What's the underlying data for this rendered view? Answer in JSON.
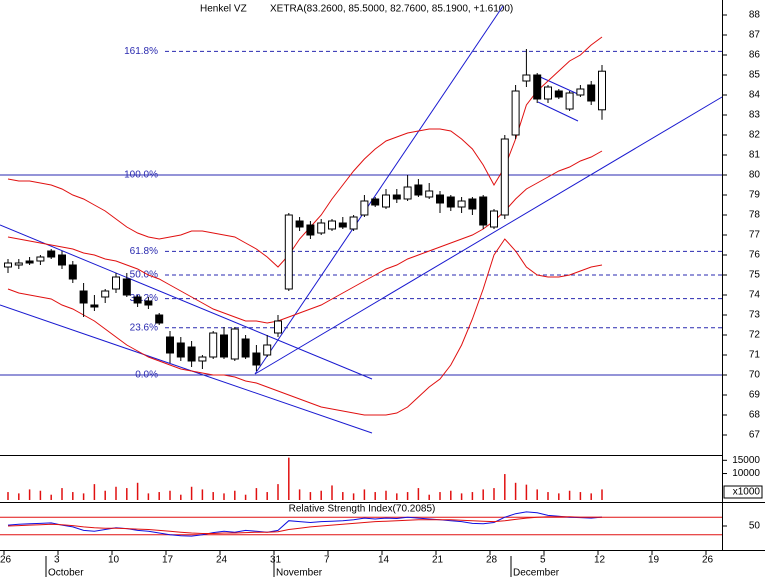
{
  "chart_data": [
    {
      "type": "candlestick",
      "title": "Henkel VZ",
      "subtitle": "XETRA(83.2600, 85.5000, 82.7600, 85.1900, +1.6100)",
      "categories": [
        "26",
        null,
        null,
        null,
        null,
        "3",
        null,
        null,
        null,
        null,
        "10",
        null,
        null,
        null,
        null,
        "17",
        null,
        null,
        null,
        null,
        "24",
        null,
        null,
        null,
        null,
        "31",
        null,
        null,
        null,
        null,
        "7",
        null,
        null,
        null,
        null,
        "14",
        null,
        null,
        null,
        null,
        "21",
        null,
        null,
        null,
        null,
        "28",
        null,
        null,
        null,
        null,
        "5",
        null,
        null,
        null,
        null,
        "12",
        null,
        null,
        null,
        null,
        "19",
        null,
        null,
        null,
        null,
        "26",
        null
      ],
      "months": [
        "October",
        "November",
        "December"
      ],
      "open": [
        75.4,
        75.5,
        75.7,
        75.7,
        76.2,
        76.0,
        75.5,
        74.2,
        73.5,
        73.9,
        74.3,
        74.8,
        73.9,
        73.7,
        73.0,
        71.9,
        71.6,
        71.4,
        70.7,
        70.9,
        72.0,
        70.8,
        71.8,
        71.1,
        71.0,
        72.1,
        74.3,
        77.7,
        77.5,
        77.1,
        77.3,
        77.6,
        77.3,
        78.0,
        78.8,
        78.4,
        79.0,
        78.8,
        79.5,
        78.9,
        79.0,
        78.9,
        78.4,
        78.8,
        78.9,
        77.4,
        78.0,
        82.0,
        84.7,
        85.0,
        83.8,
        84.2,
        83.3,
        84.0,
        84.5,
        83.26,
        null,
        null,
        null,
        null,
        null,
        null,
        null,
        null,
        null,
        null,
        null
      ],
      "high": [
        75.8,
        75.8,
        75.9,
        76.0,
        76.3,
        76.2,
        75.7,
        74.6,
        74.0,
        74.3,
        75.1,
        75.1,
        74.0,
        73.9,
        73.1,
        72.2,
        71.9,
        71.7,
        71.0,
        72.2,
        72.4,
        72.4,
        72.0,
        71.5,
        72.0,
        73.0,
        78.1,
        77.9,
        77.7,
        77.8,
        77.8,
        77.9,
        78.0,
        79.0,
        78.9,
        79.3,
        79.3,
        80.0,
        79.8,
        79.6,
        79.2,
        79.0,
        78.9,
        78.9,
        79.0,
        78.3,
        82.0,
        84.5,
        86.3,
        85.1,
        84.5,
        84.3,
        84.2,
        84.5,
        84.7,
        85.5,
        null,
        null,
        null,
        null,
        null,
        null,
        null,
        null,
        null,
        null,
        null
      ],
      "low": [
        75.1,
        75.3,
        75.5,
        75.5,
        75.8,
        75.3,
        74.6,
        72.9,
        73.2,
        73.6,
        74.1,
        73.9,
        73.4,
        73.3,
        72.5,
        70.6,
        70.7,
        70.4,
        70.3,
        70.8,
        70.8,
        70.7,
        70.8,
        70.2,
        70.9,
        71.9,
        74.2,
        77.2,
        76.8,
        77.0,
        77.2,
        77.3,
        77.2,
        77.9,
        78.4,
        78.3,
        78.6,
        78.7,
        78.9,
        78.8,
        78.1,
        78.2,
        78.1,
        78.0,
        77.3,
        77.3,
        77.8,
        81.8,
        84.4,
        83.6,
        83.6,
        83.8,
        83.2,
        83.9,
        83.5,
        82.76,
        null,
        null,
        null,
        null,
        null,
        null,
        null,
        null,
        null,
        null,
        null
      ],
      "close": [
        75.6,
        75.6,
        75.6,
        75.9,
        75.9,
        75.5,
        74.8,
        73.6,
        73.4,
        74.2,
        74.9,
        74.0,
        73.6,
        73.5,
        72.6,
        71.1,
        70.9,
        70.7,
        70.9,
        72.1,
        70.9,
        72.3,
        70.9,
        70.5,
        71.5,
        72.7,
        78.0,
        77.4,
        77.0,
        77.6,
        77.7,
        77.4,
        77.9,
        78.7,
        78.5,
        79.0,
        78.8,
        79.4,
        79.0,
        79.2,
        78.6,
        78.4,
        78.7,
        78.3,
        77.5,
        78.2,
        81.8,
        84.2,
        85.0,
        83.8,
        84.4,
        83.9,
        84.1,
        84.3,
        83.7,
        85.19,
        null,
        null,
        null,
        null,
        null,
        null,
        null,
        null,
        null,
        null,
        null
      ],
      "up_color": "#ffffff",
      "down_color": "#000000",
      "bands": [
        {
          "color": "#e01010",
          "values": [
            79.8,
            79.7,
            79.7,
            79.6,
            79.5,
            79.3,
            79.0,
            78.8,
            78.5,
            78.2,
            77.8,
            77.4,
            77.1,
            76.9,
            76.8,
            76.9,
            77.0,
            77.2,
            77.2,
            77.1,
            77.0,
            76.9,
            76.6,
            76.3,
            75.9,
            75.4,
            76.0,
            76.8,
            77.4,
            78.0,
            78.8,
            79.5,
            80.2,
            80.8,
            81.3,
            81.7,
            81.9,
            82.1,
            82.2,
            82.3,
            82.3,
            82.2,
            81.8,
            81.3,
            80.5,
            79.5,
            80.4,
            81.8,
            83.5,
            84.2,
            84.7,
            85.2,
            85.7,
            86.0,
            86.5,
            86.9,
            null,
            null,
            null,
            null,
            null,
            null,
            null,
            null,
            null,
            null,
            null
          ]
        },
        {
          "color": "#e01010",
          "values": [
            76.9,
            76.8,
            76.7,
            76.6,
            76.5,
            76.4,
            76.3,
            76.1,
            76.0,
            75.8,
            75.7,
            75.5,
            75.3,
            75.0,
            74.8,
            74.5,
            74.2,
            73.9,
            73.6,
            73.3,
            73.1,
            72.9,
            72.7,
            72.7,
            72.6,
            72.7,
            72.9,
            73.1,
            73.3,
            73.5,
            73.8,
            74.1,
            74.4,
            74.7,
            75.0,
            75.3,
            75.5,
            75.8,
            76.0,
            76.2,
            76.4,
            76.6,
            76.8,
            77.0,
            77.3,
            77.7,
            78.2,
            78.8,
            79.3,
            79.6,
            79.9,
            80.2,
            80.4,
            80.7,
            80.9,
            81.2,
            null,
            null,
            null,
            null,
            null,
            null,
            null,
            null,
            null,
            null,
            null
          ]
        },
        {
          "color": "#e01010",
          "values": [
            74.3,
            74.1,
            74.0,
            73.9,
            73.8,
            73.5,
            73.3,
            73.0,
            72.7,
            72.3,
            71.9,
            71.5,
            71.2,
            70.9,
            70.7,
            70.5,
            70.3,
            70.2,
            70.1,
            70.0,
            70.0,
            69.9,
            69.7,
            69.6,
            69.4,
            69.2,
            69.0,
            68.8,
            68.6,
            68.4,
            68.3,
            68.2,
            68.1,
            68.0,
            68.0,
            68.0,
            68.1,
            68.4,
            68.9,
            69.4,
            69.8,
            70.5,
            71.5,
            72.8,
            74.3,
            76.0,
            76.8,
            76.2,
            75.4,
            75.0,
            74.9,
            74.9,
            75.0,
            75.2,
            75.4,
            75.5,
            null,
            null,
            null,
            null,
            null,
            null,
            null,
            null,
            null,
            null,
            null
          ]
        }
      ],
      "fib_levels": [
        {
          "label": "161.8%",
          "value": 86.18
        },
        {
          "label": "100.0%",
          "value": 80.0
        },
        {
          "label": "61.8%",
          "value": 76.18
        },
        {
          "label": "50.0%",
          "value": 75.0
        },
        {
          "label": "38.2%",
          "value": 73.82
        },
        {
          "label": "23.6%",
          "value": 72.36
        },
        {
          "label": "0.0%",
          "value": 70.0
        }
      ],
      "fib_color": "#2a2ab0",
      "ylim": [
        66,
        88.75
      ],
      "yticks": [
        67,
        68,
        69,
        70,
        71,
        72,
        73,
        74,
        75,
        76,
        77,
        78,
        79,
        80,
        81,
        82,
        83,
        84,
        85,
        86,
        87,
        88
      ]
    },
    {
      "type": "volume",
      "color": "#e01010",
      "values": [
        3000,
        2500,
        4000,
        3500,
        2000,
        4500,
        3000,
        2500,
        6000,
        3500,
        5000,
        4500,
        6500,
        2500,
        3000,
        3500,
        2000,
        5000,
        4000,
        3000,
        2500,
        3500,
        2000,
        4500,
        3000,
        6000,
        16000,
        4000,
        3000,
        3500,
        5500,
        3000,
        2500,
        4000,
        3000,
        3500,
        2500,
        3000,
        4500,
        2000,
        3000,
        3500,
        2500,
        3000,
        4000,
        4500,
        9800,
        6500,
        5800,
        4000,
        3000,
        2500,
        3500,
        3000,
        2500,
        4000,
        null,
        null,
        null,
        null,
        null,
        null,
        null,
        null,
        null,
        null,
        null
      ],
      "unit": "x1000",
      "ylim": [
        0,
        17000
      ],
      "yticks": [
        10000,
        15000
      ]
    },
    {
      "type": "rsi",
      "title": "Relative Strength Index(70.2085)",
      "series": [
        {
          "color": "#1010e0",
          "values": [
            52,
            54,
            55,
            56,
            57,
            52,
            48,
            40,
            38,
            42,
            46,
            44,
            40,
            38,
            34,
            30,
            28,
            27,
            30,
            35,
            38,
            36,
            40,
            38,
            36,
            40,
            62,
            60,
            58,
            60,
            61,
            62,
            64,
            68,
            66,
            68,
            67,
            70,
            68,
            66,
            64,
            62,
            60,
            56,
            55,
            58,
            70,
            78,
            82,
            80,
            74,
            72,
            70,
            69,
            68,
            70.2085,
            null,
            null,
            null,
            null,
            null,
            null,
            null,
            null,
            null,
            null,
            null
          ]
        },
        {
          "color": "#e01010",
          "values": [
            50,
            51,
            52,
            53,
            54,
            53,
            51,
            48,
            46,
            45,
            45,
            44,
            43,
            42,
            40,
            38,
            36,
            34,
            33,
            33,
            34,
            34,
            35,
            36,
            36,
            37,
            42,
            45,
            48,
            50,
            52,
            54,
            56,
            58,
            60,
            61,
            62,
            63,
            64,
            64,
            64,
            64,
            63,
            62,
            61,
            60,
            62,
            65,
            68,
            70,
            71,
            71,
            71,
            70,
            70,
            70,
            null,
            null,
            null,
            null,
            null,
            null,
            null,
            null,
            null,
            null,
            null
          ]
        }
      ],
      "levels": [
        30,
        70
      ],
      "level_color": "#e01010",
      "ylim": [
        0,
        100
      ],
      "yticks": [
        50
      ]
    }
  ]
}
